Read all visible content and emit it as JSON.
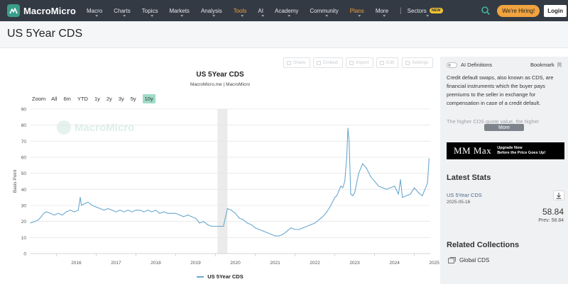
{
  "navbar": {
    "brand": "MacroMicro",
    "items": [
      {
        "label": "Macro",
        "caret": true,
        "highlight": false
      },
      {
        "label": "Charts",
        "caret": true,
        "highlight": false
      },
      {
        "label": "Topics",
        "caret": true,
        "highlight": false
      },
      {
        "label": "Markets",
        "caret": true,
        "highlight": false
      },
      {
        "label": "Analysis",
        "caret": true,
        "highlight": false
      },
      {
        "label": "Tools",
        "caret": true,
        "highlight": true
      },
      {
        "label": "AI",
        "caret": true,
        "highlight": false
      },
      {
        "label": "Academy",
        "caret": true,
        "highlight": false
      },
      {
        "label": "Community",
        "caret": true,
        "highlight": false
      },
      {
        "label": "Plans",
        "caret": true,
        "highlight": true
      },
      {
        "label": "More",
        "caret": true,
        "highlight": false
      }
    ],
    "separator": "|",
    "sectors_label": "Sectors",
    "sectors_badge": "NEW",
    "hiring_label": "We're Hiring!",
    "login_label": "Login",
    "colors": {
      "bg": "#333a44",
      "accent": "#f29f3a",
      "brand": "#3a9e8a"
    }
  },
  "page_title": "US 5Year CDS",
  "toolbar": {
    "buttons": [
      "Share",
      "Embed",
      "Import",
      "Edit",
      "Settings"
    ]
  },
  "zoom": {
    "label": "Zoom",
    "options": [
      "All",
      "6m",
      "YTD",
      "1y",
      "2y",
      "3y",
      "5y",
      "10y"
    ],
    "active": "10y"
  },
  "watermark": "MacroMicro",
  "chart_data": {
    "type": "line",
    "title": "US 5Year CDS",
    "subtitle": "MacroMicro.me | MacroMicro",
    "ylabel": "Basis Point",
    "xlabel": "",
    "ylim": [
      0,
      90
    ],
    "yticks": [
      0,
      10,
      20,
      30,
      40,
      50,
      60,
      70,
      80,
      90
    ],
    "xticks": [
      "2016",
      "2017",
      "2018",
      "2019",
      "2020",
      "2021",
      "2022",
      "2023",
      "2024",
      "2025"
    ],
    "grid": true,
    "legend": "bottom-center",
    "shaded_period": {
      "start": 2020.05,
      "end": 2020.3
    },
    "series": [
      {
        "name": "US 5Year CDS",
        "color": "#6aa8cf",
        "x": [
          2015.35,
          2015.45,
          2015.55,
          2015.62,
          2015.68,
          2015.75,
          2015.85,
          2015.95,
          2016.05,
          2016.15,
          2016.25,
          2016.35,
          2016.45,
          2016.55,
          2016.6,
          2016.63,
          2016.7,
          2016.8,
          2016.9,
          2017.0,
          2017.1,
          2017.2,
          2017.3,
          2017.4,
          2017.5,
          2017.6,
          2017.7,
          2017.8,
          2017.9,
          2018.0,
          2018.1,
          2018.2,
          2018.3,
          2018.4,
          2018.5,
          2018.6,
          2018.7,
          2018.8,
          2018.9,
          2019.0,
          2019.1,
          2019.2,
          2019.3,
          2019.4,
          2019.5,
          2019.6,
          2019.7,
          2019.8,
          2019.9,
          2020.0,
          2020.1,
          2020.15,
          2020.2,
          2020.3,
          2020.4,
          2020.5,
          2020.6,
          2020.7,
          2020.8,
          2020.9,
          2021.0,
          2021.1,
          2021.2,
          2021.3,
          2021.4,
          2021.5,
          2021.6,
          2021.7,
          2021.8,
          2021.9,
          2022.0,
          2022.1,
          2022.2,
          2022.3,
          2022.4,
          2022.5,
          2022.6,
          2022.7,
          2022.8,
          2022.9,
          2023.0,
          2023.05,
          2023.1,
          2023.15,
          2023.2,
          2023.25,
          2023.3,
          2023.33,
          2023.36,
          2023.4,
          2023.45,
          2023.5,
          2023.6,
          2023.7,
          2023.8,
          2023.9,
          2024.0,
          2024.1,
          2024.2,
          2024.3,
          2024.4,
          2024.5,
          2024.6,
          2024.65,
          2024.7,
          2024.8,
          2024.9,
          2025.0,
          2025.1,
          2025.2,
          2025.3,
          2025.33,
          2025.37
        ],
        "values": [
          19,
          20,
          21,
          23,
          25,
          26,
          25,
          24,
          25,
          24,
          26,
          27,
          26,
          27,
          35,
          30,
          31,
          32,
          30,
          29,
          28,
          27,
          28,
          27,
          26,
          27,
          26,
          27,
          26,
          27,
          27,
          26,
          27,
          26,
          27,
          25,
          26,
          25,
          25,
          25,
          24,
          23,
          24,
          23,
          22,
          19,
          20,
          18,
          17,
          17,
          17,
          17,
          17,
          28,
          27,
          25,
          22,
          21,
          19,
          18,
          16,
          15,
          14,
          13,
          12,
          11,
          11,
          12,
          14,
          16,
          15,
          15,
          16,
          17,
          18,
          19,
          21,
          23,
          26,
          30,
          35,
          36,
          39,
          42,
          41,
          45,
          60,
          78,
          70,
          37,
          36,
          38,
          50,
          56,
          53,
          48,
          45,
          42,
          41,
          40,
          41,
          42,
          37,
          46,
          35,
          36,
          37,
          41,
          38,
          36,
          42,
          44,
          59
        ]
      }
    ]
  },
  "legend_label": "US 5Year CDS",
  "sidebar": {
    "ai_label": "AI Definitions",
    "bookmark_label": "Bookmark",
    "description": "Credit default swaps, also known as CDS, are financial instruments which the buyer pays premiums to the seller in exchange for compensation in case of a credit default.",
    "description_fade": "The higher CDS quote value, the higher",
    "more_label": "More",
    "banner_brand": "MM Max",
    "banner_line1": "Upgrade Now",
    "banner_line2": "Before the Price Goes Up!",
    "latest_stats_title": "Latest Stats",
    "stat_name": "US 5Year CDS",
    "stat_date": "2025-05-16",
    "stat_value": "58.84",
    "stat_prev": "Prev: 58.84",
    "related_title": "Related Collections",
    "related_item": "Global CDS"
  }
}
